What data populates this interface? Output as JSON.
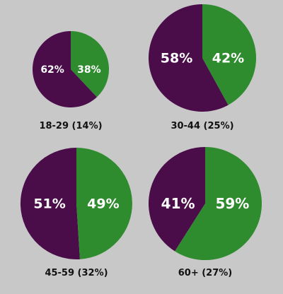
{
  "chart_data": [
    {
      "type": "pie",
      "group_label": "18-29 (14%)",
      "slices": [
        {
          "value": 62,
          "label": "62%",
          "color": "#4a0d4a"
        },
        {
          "value": 38,
          "label": "38%",
          "color": "#2e8b2e"
        }
      ]
    },
    {
      "type": "pie",
      "group_label": "30-44 (25%)",
      "slices": [
        {
          "value": 58,
          "label": "58%",
          "color": "#4a0d4a"
        },
        {
          "value": 42,
          "label": "42%",
          "color": "#2e8b2e"
        }
      ]
    },
    {
      "type": "pie",
      "group_label": "45-59 (32%)",
      "slices": [
        {
          "value": 51,
          "label": "51%",
          "color": "#4a0d4a"
        },
        {
          "value": 49,
          "label": "49%",
          "color": "#2e8b2e"
        }
      ]
    },
    {
      "type": "pie",
      "group_label": "60+ (27%)",
      "slices": [
        {
          "value": 41,
          "label": "41%",
          "color": "#4a0d4a"
        },
        {
          "value": 59,
          "label": "59%",
          "color": "#2e8b2e"
        }
      ]
    }
  ],
  "colors": {
    "background": "#c8c8c8",
    "purple": "#4a0d4a",
    "green": "#2e8b2e",
    "slice_text": "#ffffff",
    "caption_text": "#111111"
  }
}
